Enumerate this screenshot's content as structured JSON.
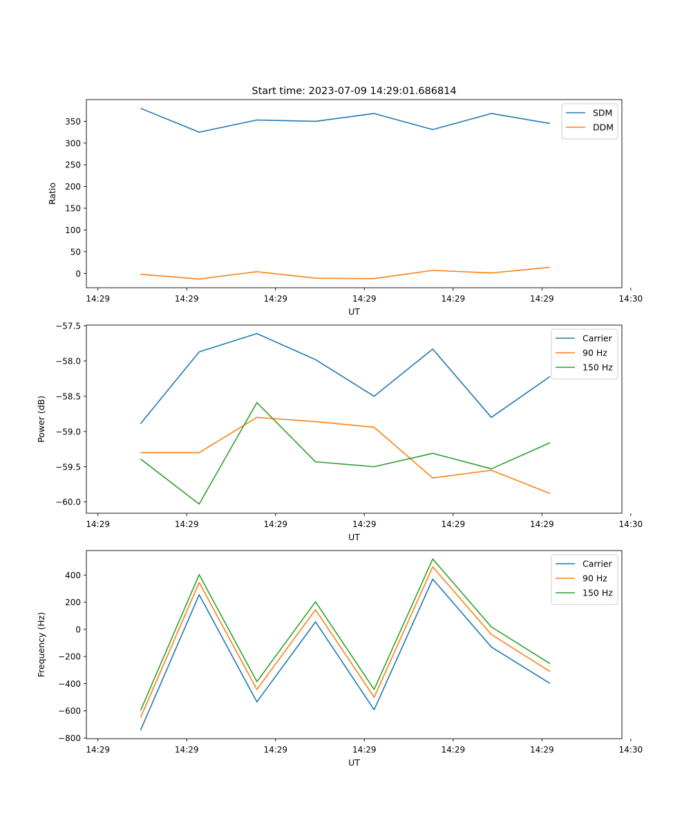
{
  "figure": {
    "title": "Start time: 2023-07-09 14:29:01.686814"
  },
  "chart_data": [
    {
      "type": "line",
      "xlabel": "UT",
      "ylabel": "Ratio",
      "x_tick_labels": [
        "14:29",
        "14:29",
        "14:29",
        "14:29",
        "14:29",
        "14:29",
        "14:30"
      ],
      "x_ticks": [
        0,
        1,
        2,
        3,
        4,
        5,
        6
      ],
      "xlim": [
        -0.13,
        5.9
      ],
      "x": [
        0.48,
        1.14,
        1.79,
        2.45,
        3.11,
        3.77,
        4.43,
        5.09
      ],
      "ylim": [
        -33,
        400
      ],
      "y_ticks": [
        0,
        50,
        100,
        150,
        200,
        250,
        300,
        350
      ],
      "y_tick_labels": [
        "0",
        "50",
        "100",
        "150",
        "200",
        "250",
        "300",
        "350"
      ],
      "legend_position": "top-right",
      "series": [
        {
          "name": "SDM",
          "color": "#1f77b4",
          "values": [
            380,
            325,
            353,
            350,
            368,
            331,
            368,
            345
          ]
        },
        {
          "name": "DDM",
          "color": "#ff7f0e",
          "values": [
            -2,
            -13,
            4,
            -11,
            -12,
            7,
            1,
            14
          ]
        }
      ]
    },
    {
      "type": "line",
      "xlabel": "UT",
      "ylabel": "Power (dB)",
      "x_tick_labels": [
        "14:29",
        "14:29",
        "14:29",
        "14:29",
        "14:29",
        "14:29",
        "14:30"
      ],
      "x_ticks": [
        0,
        1,
        2,
        3,
        4,
        5,
        6
      ],
      "xlim": [
        -0.13,
        5.9
      ],
      "x": [
        0.48,
        1.14,
        1.79,
        2.45,
        3.11,
        3.77,
        4.43,
        5.09
      ],
      "ylim": [
        -60.16,
        -57.49
      ],
      "y_ticks": [
        -57.5,
        -58.0,
        -58.5,
        -59.0,
        -59.5,
        -60.0
      ],
      "y_tick_labels": [
        "−57.5",
        "−58.0",
        "−58.5",
        "−59.0",
        "−59.5",
        "−60.0"
      ],
      "legend_position": "top-right",
      "series": [
        {
          "name": "Carrier",
          "color": "#1f77b4",
          "values": [
            -58.89,
            -57.87,
            -57.61,
            -57.98,
            -58.5,
            -57.83,
            -58.8,
            -58.22
          ]
        },
        {
          "name": "90 Hz",
          "color": "#ff7f0e",
          "values": [
            -59.3,
            -59.3,
            -58.8,
            -58.86,
            -58.94,
            -59.66,
            -59.55,
            -59.88
          ]
        },
        {
          "name": "150 Hz",
          "color": "#2ca02c",
          "values": [
            -59.39,
            -60.03,
            -58.59,
            -59.43,
            -59.5,
            -59.31,
            -59.53,
            -59.16
          ]
        }
      ]
    },
    {
      "type": "line",
      "xlabel": "UT",
      "ylabel": "Frequency (Hz)",
      "x_tick_labels": [
        "14:29",
        "14:29",
        "14:29",
        "14:29",
        "14:29",
        "14:29",
        "14:30"
      ],
      "x_ticks": [
        0,
        1,
        2,
        3,
        4,
        5,
        6
      ],
      "xlim": [
        -0.13,
        5.9
      ],
      "x": [
        0.48,
        1.14,
        1.79,
        2.45,
        3.11,
        3.77,
        4.43,
        5.09
      ],
      "ylim": [
        -805,
        580
      ],
      "y_ticks": [
        -800,
        -600,
        -400,
        -200,
        0,
        200,
        400
      ],
      "y_tick_labels": [
        "−800",
        "−600",
        "−400",
        "−200",
        "0",
        "200",
        "400"
      ],
      "legend_position": "top-right",
      "series": [
        {
          "name": "Carrier",
          "color": "#1f77b4",
          "values": [
            -743,
            255,
            -534,
            55,
            -592,
            370,
            -130,
            -398
          ]
        },
        {
          "name": "90 Hz",
          "color": "#ff7f0e",
          "values": [
            -650,
            345,
            -442,
            145,
            -500,
            460,
            -38,
            -310
          ]
        },
        {
          "name": "150 Hz",
          "color": "#2ca02c",
          "values": [
            -598,
            403,
            -385,
            203,
            -442,
            518,
            18,
            -252
          ]
        }
      ]
    }
  ]
}
